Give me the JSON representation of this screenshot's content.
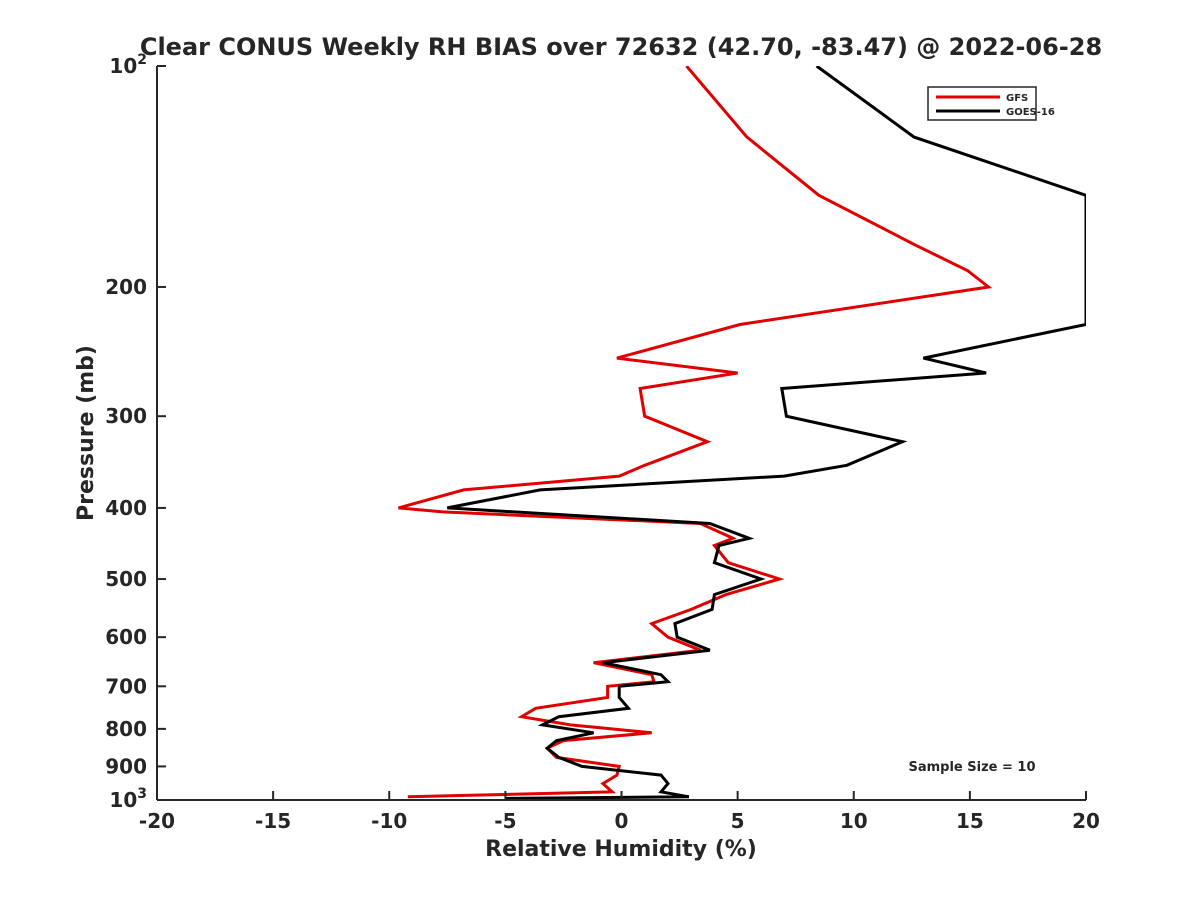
{
  "chart_data": {
    "type": "line",
    "title": "Clear CONUS Weekly RH BIAS over 72632 (42.70, -83.47) @ 2022-06-28",
    "xlabel": "Relative Humidity (%)",
    "ylabel": "Pressure (mb)",
    "xlim": [
      -20,
      20
    ],
    "ylim": [
      100,
      1000
    ],
    "y_scale": "log",
    "y_reversed": true,
    "grid": false,
    "legend_position": "top-right",
    "x_ticks": [
      -20,
      -15,
      -10,
      -5,
      0,
      5,
      10,
      15,
      20
    ],
    "x_tick_labels": [
      "-20",
      "-15",
      "-10",
      "-5",
      "0",
      "5",
      "10",
      "15",
      "20"
    ],
    "y_ticks": [
      100,
      200,
      300,
      400,
      500,
      600,
      700,
      800,
      900,
      1000
    ],
    "y_tick_labels": [
      "10^2",
      "200",
      "300",
      "400",
      "500",
      "600",
      "700",
      "800",
      "900",
      "10^3"
    ],
    "annotation": "Sample Size = 10",
    "series": [
      {
        "name": "GFS",
        "color": "#e00000",
        "points": [
          [
            2.8,
            100
          ],
          [
            5.4,
            125
          ],
          [
            8.5,
            150
          ],
          [
            12.6,
            175
          ],
          [
            14.9,
            190
          ],
          [
            15.8,
            200
          ],
          [
            5.1,
            225
          ],
          [
            -0.2,
            250
          ],
          [
            5.0,
            262
          ],
          [
            0.8,
            275
          ],
          [
            1.0,
            300
          ],
          [
            3.7,
            325
          ],
          [
            1.0,
            350
          ],
          [
            -0.1,
            362
          ],
          [
            -6.8,
            378
          ],
          [
            -9.6,
            400
          ],
          [
            -7.7,
            405
          ],
          [
            3.4,
            420
          ],
          [
            4.8,
            440
          ],
          [
            4.0,
            450
          ],
          [
            4.6,
            475
          ],
          [
            6.8,
            500
          ],
          [
            4.5,
            525
          ],
          [
            3.0,
            550
          ],
          [
            1.3,
            575
          ],
          [
            2.0,
            600
          ],
          [
            3.4,
            625
          ],
          [
            -1.2,
            650
          ],
          [
            1.3,
            675
          ],
          [
            1.4,
            690
          ],
          [
            -0.6,
            700
          ],
          [
            -0.6,
            725
          ],
          [
            -3.7,
            750
          ],
          [
            -4.3,
            770
          ],
          [
            -2.2,
            790
          ],
          [
            1.3,
            810
          ],
          [
            -2.5,
            830
          ],
          [
            -3.2,
            850
          ],
          [
            -2.8,
            875
          ],
          [
            -0.1,
            900
          ],
          [
            -0.2,
            925
          ],
          [
            -0.8,
            950
          ],
          [
            -0.4,
            975
          ],
          [
            -9.2,
            990
          ]
        ]
      },
      {
        "name": "GOES-16",
        "color": "#000000",
        "points": [
          [
            8.4,
            100
          ],
          [
            12.6,
            125
          ],
          [
            20.0,
            150
          ],
          [
            20.0,
            225
          ],
          [
            13.0,
            250
          ],
          [
            15.7,
            262
          ],
          [
            6.9,
            275
          ],
          [
            7.1,
            300
          ],
          [
            12.1,
            325
          ],
          [
            9.7,
            350
          ],
          [
            7.0,
            362
          ],
          [
            -3.5,
            378
          ],
          [
            -7.5,
            400
          ],
          [
            -7.5,
            400
          ],
          [
            3.8,
            420
          ],
          [
            5.5,
            440
          ],
          [
            4.2,
            450
          ],
          [
            4.0,
            475
          ],
          [
            6.0,
            500
          ],
          [
            4.0,
            525
          ],
          [
            3.9,
            550
          ],
          [
            2.3,
            575
          ],
          [
            2.4,
            600
          ],
          [
            3.8,
            625
          ],
          [
            -0.8,
            650
          ],
          [
            1.7,
            675
          ],
          [
            2.0,
            690
          ],
          [
            -0.1,
            700
          ],
          [
            -0.1,
            725
          ],
          [
            0.3,
            750
          ],
          [
            -2.7,
            770
          ],
          [
            -3.4,
            790
          ],
          [
            -1.2,
            810
          ],
          [
            -2.8,
            830
          ],
          [
            -3.2,
            850
          ],
          [
            -2.7,
            875
          ],
          [
            -1.7,
            900
          ],
          [
            1.7,
            925
          ],
          [
            2.0,
            950
          ],
          [
            1.7,
            975
          ],
          [
            2.9,
            990
          ],
          [
            -5.0,
            995
          ]
        ]
      }
    ]
  }
}
